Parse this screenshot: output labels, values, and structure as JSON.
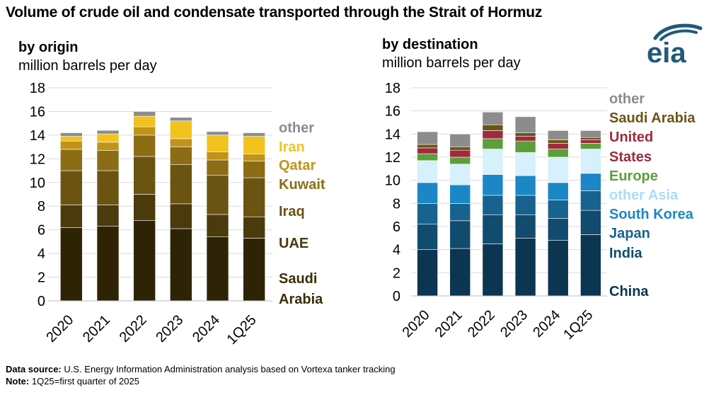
{
  "title": "Volume of crude oil and condensate transported through the Strait of Hormuz",
  "logo_text": "eia",
  "footer": {
    "source_label": "Data source:",
    "source_text": "U.S. Energy Information Administration analysis based on Vortexa tanker tracking",
    "note_label": "Note:",
    "note_text": "1Q25=first quarter of 2025"
  },
  "colors": {
    "logo": "#1f5a7a"
  },
  "chart_data": [
    {
      "type": "bar",
      "stacked": true,
      "title": "by origin",
      "ylabel": "million barrels per day",
      "ylim": [
        0,
        18
      ],
      "yticks": [
        "0",
        "2",
        "4",
        "6",
        "8",
        "10",
        "12",
        "14",
        "16",
        "18"
      ],
      "categories": [
        "2020",
        "2021",
        "2022",
        "2023",
        "2024",
        "1Q25"
      ],
      "series": [
        {
          "name": "Saudi Arabia",
          "label_lines": [
            "Saudi",
            "Arabia"
          ],
          "color": "#2e2405",
          "label_color": "#3a2f08",
          "values": [
            6.2,
            6.3,
            6.8,
            6.1,
            5.4,
            5.3
          ]
        },
        {
          "name": "UAE",
          "label_lines": [
            "UAE"
          ],
          "color": "#4a3a0c",
          "label_color": "#4a3a0c",
          "values": [
            1.9,
            1.8,
            2.2,
            2.1,
            1.9,
            1.8
          ]
        },
        {
          "name": "Iraq",
          "label_lines": [
            "Iraq"
          ],
          "color": "#6b5412",
          "label_color": "#6b5412",
          "values": [
            2.9,
            2.9,
            3.2,
            3.3,
            3.3,
            3.3
          ]
        },
        {
          "name": "Kuwait",
          "label_lines": [
            "Kuwait"
          ],
          "color": "#8c6d15",
          "label_color": "#8c6d15",
          "values": [
            1.8,
            1.7,
            1.8,
            1.5,
            1.3,
            1.4
          ]
        },
        {
          "name": "Qatar",
          "label_lines": [
            "Qatar"
          ],
          "color": "#bf9418",
          "label_color": "#bf9418",
          "values": [
            0.7,
            0.7,
            0.7,
            0.7,
            0.7,
            0.6
          ]
        },
        {
          "name": "Iran",
          "label_lines": [
            "Iran"
          ],
          "color": "#f2c31f",
          "label_color": "#f2c31f",
          "values": [
            0.4,
            0.7,
            0.9,
            1.5,
            1.4,
            1.5
          ]
        },
        {
          "name": "other",
          "label_lines": [
            "other"
          ],
          "color": "#8c8c8c",
          "label_color": "#8c8c8c",
          "values": [
            0.3,
            0.3,
            0.4,
            0.3,
            0.3,
            0.3
          ]
        }
      ]
    },
    {
      "type": "bar",
      "stacked": true,
      "title": "by destination",
      "ylabel": "million barrels per day",
      "ylim": [
        0,
        18
      ],
      "yticks": [
        "0",
        "2",
        "4",
        "6",
        "8",
        "10",
        "12",
        "14",
        "16",
        "18"
      ],
      "categories": [
        "2020",
        "2021",
        "2022",
        "2023",
        "2024",
        "1Q25"
      ],
      "series": [
        {
          "name": "China",
          "label_lines": [
            "China"
          ],
          "color": "#0b3551",
          "label_color": "#0b3551",
          "values": [
            4.0,
            4.1,
            4.5,
            5.0,
            4.8,
            5.3
          ]
        },
        {
          "name": "India",
          "label_lines": [
            "India"
          ],
          "color": "#114b6e",
          "label_color": "#114b6e",
          "values": [
            2.2,
            2.4,
            2.5,
            2.0,
            1.9,
            2.1
          ]
        },
        {
          "name": "Japan",
          "label_lines": [
            "Japan"
          ],
          "color": "#17628f",
          "label_color": "#17628f",
          "values": [
            1.8,
            1.5,
            1.7,
            1.7,
            1.6,
            1.7
          ]
        },
        {
          "name": "South Korea",
          "label_lines": [
            "South Korea"
          ],
          "color": "#1b87c6",
          "label_color": "#1b87c6",
          "values": [
            1.8,
            1.6,
            1.8,
            1.7,
            1.5,
            1.5
          ]
        },
        {
          "name": "other Asia",
          "label_lines": [
            "other Asia"
          ],
          "color": "#d6f0fc",
          "label_color": "#a9def5",
          "values": [
            1.9,
            1.8,
            2.2,
            2.0,
            2.2,
            2.1
          ]
        },
        {
          "name": "Europe",
          "label_lines": [
            "Europe"
          ],
          "color": "#5c9e3a",
          "label_color": "#5c9e3a",
          "values": [
            0.6,
            0.6,
            0.9,
            1.0,
            0.7,
            0.5
          ]
        },
        {
          "name": "United States",
          "label_lines": [
            "United",
            "States"
          ],
          "color": "#9e2a3c",
          "label_color": "#9e2a3c",
          "values": [
            0.5,
            0.6,
            0.7,
            0.4,
            0.5,
            0.3
          ]
        },
        {
          "name": "Saudi Arabia",
          "label_lines": [
            "Saudi Arabia"
          ],
          "color": "#6b5412",
          "label_color": "#6b5412",
          "values": [
            0.3,
            0.3,
            0.5,
            0.3,
            0.3,
            0.2
          ]
        },
        {
          "name": "other",
          "label_lines": [
            "other"
          ],
          "color": "#8c8c8c",
          "label_color": "#8c8c8c",
          "values": [
            1.1,
            1.1,
            1.1,
            1.4,
            0.8,
            0.6
          ]
        }
      ]
    }
  ]
}
